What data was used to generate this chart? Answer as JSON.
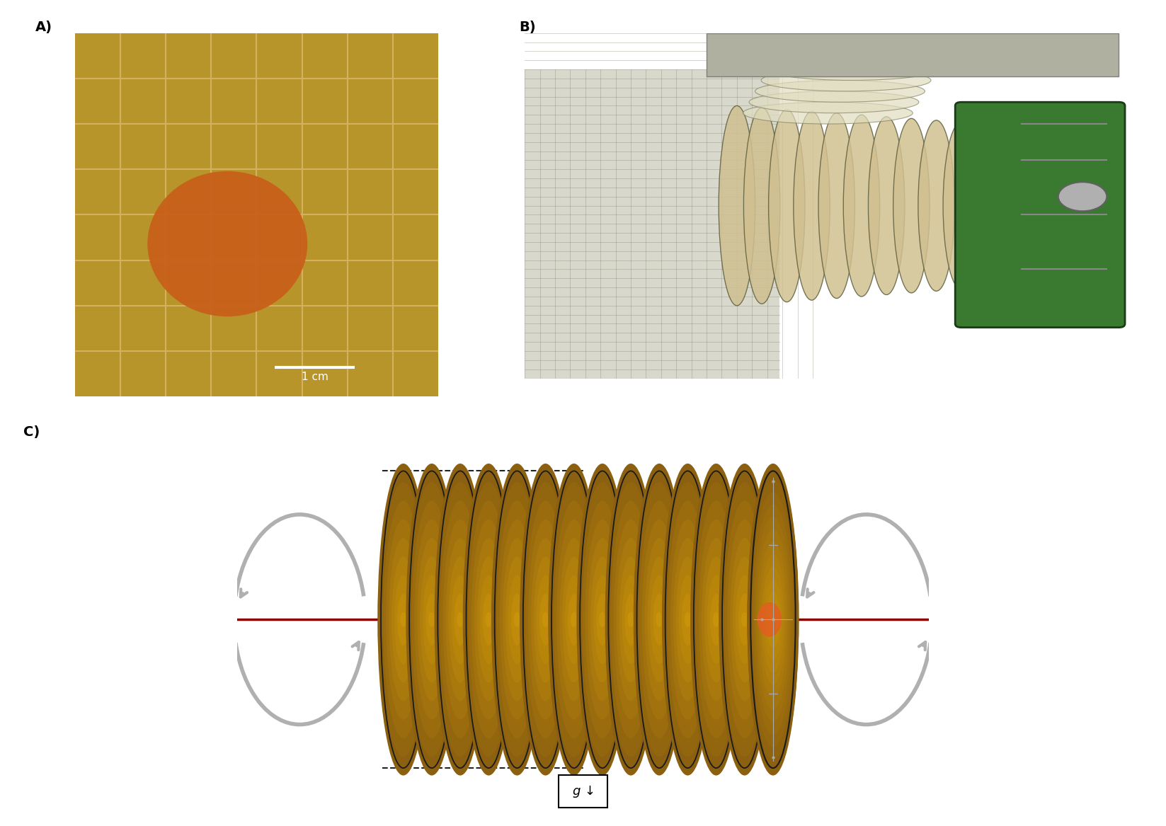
{
  "bg_color": "#ffffff",
  "label_A": "A)",
  "label_B": "B)",
  "label_C": "C)",
  "label_fontsize": 14,
  "panel_A": {
    "bg_color": "#b8952a",
    "grid_color": "#d4b060",
    "colony_color": "#c8601a",
    "scale_bar_color": "#ffffff",
    "scale_bar_text": "1 cm"
  },
  "panel_C": {
    "disk_color_inner": "#c8920a",
    "disk_color_outer": "#8b6010",
    "disk_edge_color": "#1a1a1a",
    "axis_line_color": "#8b0000",
    "arrow_color": "#aaaaaa",
    "orange_spot_color": "#e06020",
    "crosshair_color": "#aaaaaa",
    "dashed_line_color": "#222222",
    "g_box_color": "#000000",
    "n_disks": 14
  }
}
